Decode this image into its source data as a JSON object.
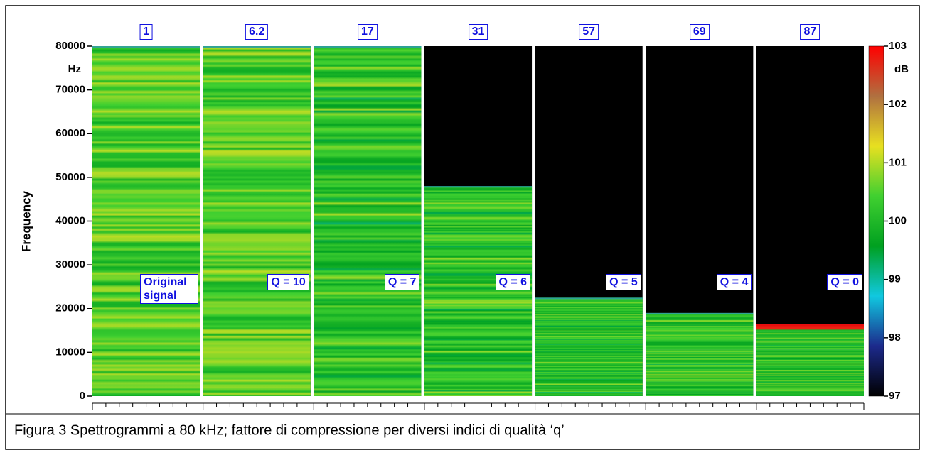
{
  "chart_data": {
    "type": "spectrogram",
    "caption": "Figura 3    Spettrogrammi a 80 kHz; fattore di compressione per diversi indici di qualità ‘q’",
    "ylabel": "Frequency",
    "y_unit": "Hz",
    "ylim": [
      0,
      80000
    ],
    "yticks": [
      0,
      10000,
      20000,
      30000,
      40000,
      50000,
      60000,
      70000,
      80000
    ],
    "colorbar_label": "dB",
    "clim": [
      97,
      103
    ],
    "cticks": [
      97,
      98,
      99,
      100,
      101,
      102,
      103
    ],
    "colormap": [
      "#000000",
      "#1c2a8c",
      "#10c8e0",
      "#00a020",
      "#40d030",
      "#e8e020",
      "#b07040",
      "#ff0000"
    ],
    "panels": [
      {
        "compression": 1,
        "quality": "Original signal",
        "cutoff": 80000
      },
      {
        "compression": 6.2,
        "quality": "Q = 10",
        "cutoff": 80000
      },
      {
        "compression": 17,
        "quality": "Q = 7",
        "cutoff": 80000
      },
      {
        "compression": 31,
        "quality": "Q = 6",
        "cutoff": 48000
      },
      {
        "compression": 57,
        "quality": "Q = 5",
        "cutoff": 22500
      },
      {
        "compression": 69,
        "quality": "Q = 4",
        "cutoff": 19000
      },
      {
        "compression": 87,
        "quality": "Q = 0",
        "cutoff": 16000
      }
    ]
  }
}
